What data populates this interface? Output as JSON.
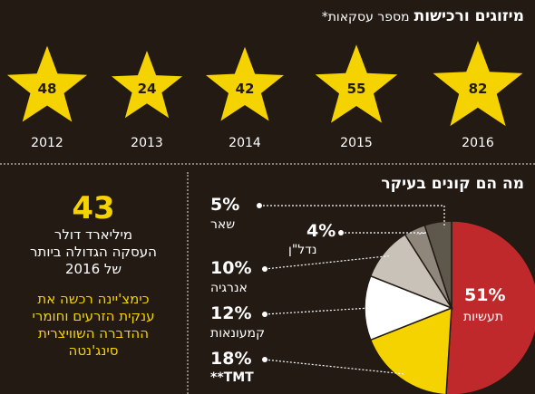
{
  "header": {
    "title": "מיזוגים ורכישות",
    "subtitle": "מספר עסקאות*"
  },
  "stars": [
    {
      "year": "2012",
      "count": "48"
    },
    {
      "year": "2013",
      "count": "24"
    },
    {
      "year": "2014",
      "count": "42"
    },
    {
      "year": "2015",
      "count": "55"
    },
    {
      "year": "2016",
      "count": "82"
    }
  ],
  "buyers": {
    "title": "מה הם קונים בעיקר"
  },
  "highlight": {
    "number": "43",
    "line1": "מיליארד דולר",
    "line2": "העסקה הגדולה ביותר",
    "line3": "של 2016",
    "note1": "כימצ'יינה רכשה את",
    "note2": "ענקית הזרעים וחומרי",
    "note3": "ההדברה השוויצרית",
    "note4": "סינג'נטה"
  },
  "colors": {
    "background": "#231a14",
    "star": "#f5d300",
    "industry": "#c0292b",
    "tmt": "#f5d300",
    "telecom": "#ffffff",
    "energy": "#c9c2b8",
    "realestate": "#8f877c",
    "other": "#5e584c"
  },
  "chart_data": [
    {
      "type": "bar",
      "title": "מיזוגים ורכישות",
      "subtitle": "מספר עסקאות*",
      "categories": [
        "2012",
        "2013",
        "2014",
        "2015",
        "2016"
      ],
      "values": [
        48,
        24,
        42,
        55,
        82
      ]
    },
    {
      "type": "pie",
      "title": "מה הם קונים בעיקר",
      "slices": [
        {
          "label": "תעשיות",
          "value": 51,
          "display": "51%"
        },
        {
          "label": "**TMT",
          "value": 18,
          "display": "18%"
        },
        {
          "label": "קמעונאות",
          "value": 12,
          "display": "12%"
        },
        {
          "label": "אנרגיה",
          "value": 10,
          "display": "10%"
        },
        {
          "label": "נדל\"ן",
          "value": 4,
          "display": "4%"
        },
        {
          "label": "שאר",
          "value": 5,
          "display": "5%"
        }
      ]
    }
  ]
}
